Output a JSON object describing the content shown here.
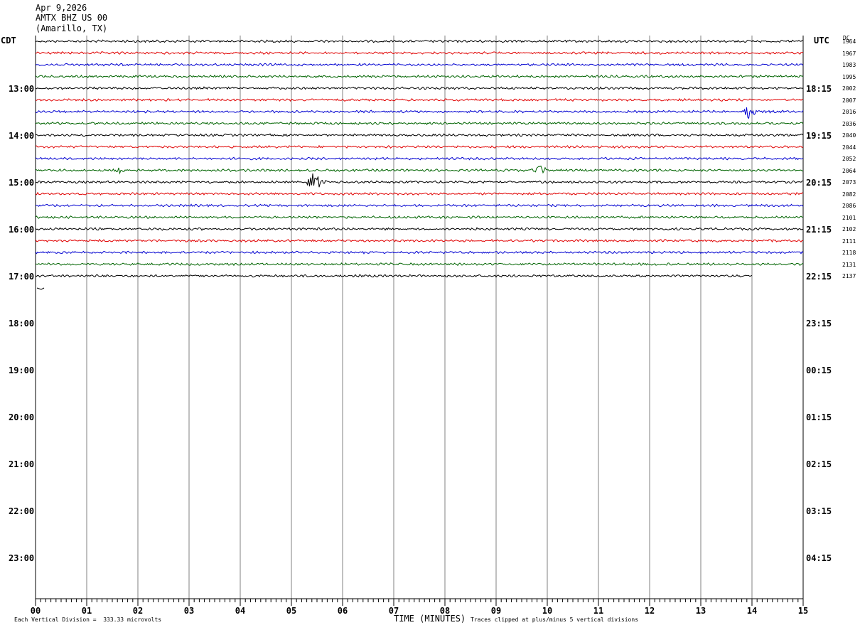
{
  "header": {
    "date": "Apr 9,2026",
    "station": "AMTX BHZ US 00",
    "location": "(Amarillo, TX)"
  },
  "labels": {
    "left_zone": "CDT",
    "right_zone": "UTC",
    "dc_header": "DC",
    "xlabel": "TIME (MINUTES)",
    "scale_note": "Each Vertical Division =  333.33 microvolts",
    "clip_note": "Traces clipped at plus/minus 5 vertical divisions"
  },
  "chart_data": {
    "type": "line",
    "xlabel": "TIME (MINUTES)",
    "xlim": [
      0,
      15
    ],
    "x_ticks": [
      "00",
      "01",
      "02",
      "03",
      "04",
      "05",
      "06",
      "07",
      "08",
      "09",
      "10",
      "11",
      "12",
      "13",
      "14",
      "15"
    ],
    "left_hour_labels": [
      "13:00",
      "14:00",
      "15:00",
      "16:00",
      "17:00",
      "18:00",
      "19:00",
      "20:00",
      "21:00",
      "22:00",
      "23:00"
    ],
    "right_hour_labels": [
      "18:15",
      "19:15",
      "20:15",
      "21:15",
      "22:15",
      "23:15",
      "00:15",
      "01:15",
      "02:15",
      "03:15",
      "04:15"
    ],
    "trace_colors": [
      "#000000",
      "#e00000",
      "#0000d0",
      "#006400"
    ],
    "dc_values": [
      "1964",
      "1967",
      "1983",
      "1995",
      "2002",
      "2007",
      "2016",
      "2036",
      "2040",
      "2044",
      "2052",
      "2064",
      "2073",
      "2082",
      "2086",
      "2101",
      "2102",
      "2111",
      "2118",
      "2131",
      "2137"
    ],
    "traces_per_hour": 4,
    "events": [
      {
        "trace_index": 6,
        "minute": 13.9,
        "amplitude": "large"
      },
      {
        "trace_index": 11,
        "minute": 9.8,
        "amplitude": "medium"
      },
      {
        "trace_index": 11,
        "minute": 1.6,
        "amplitude": "small"
      },
      {
        "trace_index": 12,
        "minute": 5.4,
        "amplitude": "very large"
      }
    ],
    "last_trace_end_minute": 14.0
  }
}
